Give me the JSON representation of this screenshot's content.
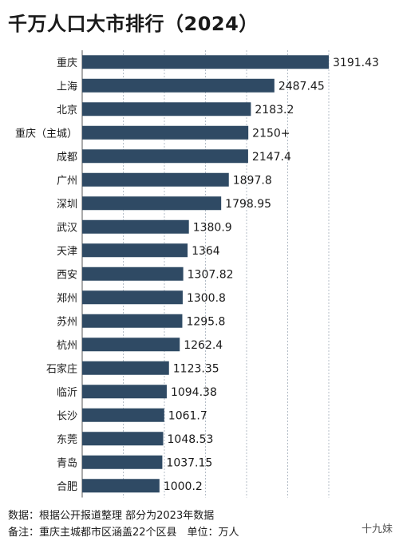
{
  "title": "千万人口大市排行（2024）",
  "notes": {
    "source": "数据：根据公开报道整理 部分为2023年数据",
    "remark": "备注：重庆主城都市区涵盖22个区县　单位：万人"
  },
  "watermark": "十九妹",
  "chart_data": {
    "type": "bar",
    "orientation": "horizontal",
    "title": "千万人口大市排行（2024）",
    "categories": [
      "重庆",
      "上海",
      "北京",
      "重庆（主城）",
      "成都",
      "广州",
      "深圳",
      "武汉",
      "天津",
      "西安",
      "郑州",
      "苏州",
      "杭州",
      "石家庄",
      "临沂",
      "长沙",
      "东莞",
      "青岛",
      "合肥"
    ],
    "values": [
      3191.43,
      2487.45,
      2183.2,
      2150,
      2147.4,
      1897.8,
      1798.95,
      1380.9,
      1364,
      1307.82,
      1300.8,
      1295.8,
      1262.4,
      1123.35,
      1094.38,
      1061.7,
      1048.53,
      1037.15,
      1000.2
    ],
    "value_labels": [
      "3191.43",
      "2487.45",
      "2183.2",
      "2150+",
      "2147.4",
      "1897.8",
      "1798.95",
      "1380.9",
      "1364",
      "1307.82",
      "1300.8",
      "1295.8",
      "1262.4",
      "1123.35",
      "1094.38",
      "1061.7",
      "1048.53",
      "1037.15",
      "1000.2"
    ],
    "unit": "万人",
    "xlim": [
      0,
      3191.43
    ],
    "grid": true,
    "bar_color": "#2f4a64"
  }
}
